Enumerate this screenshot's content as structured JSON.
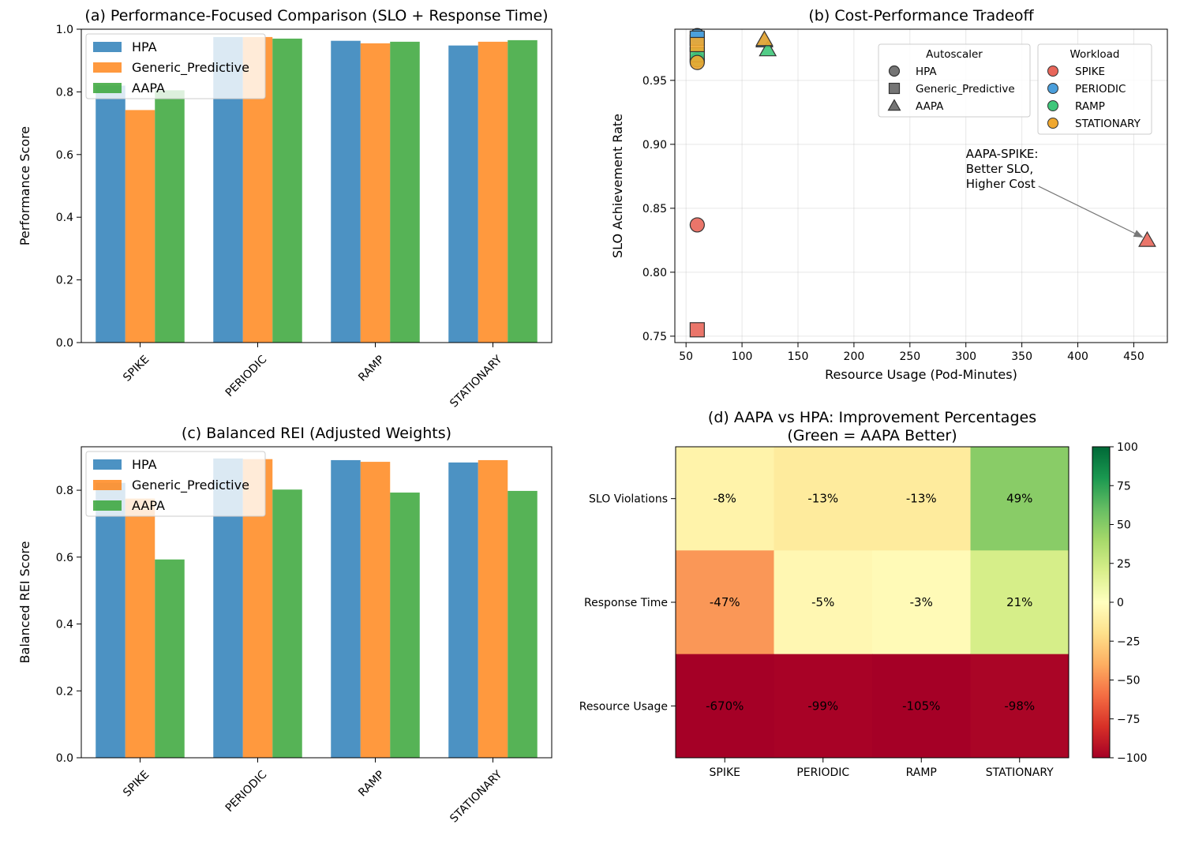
{
  "chart_data": [
    {
      "id": "a",
      "type": "bar",
      "title": "(a) Performance-Focused Comparison (SLO + Response Time)",
      "xlabel": "",
      "ylabel": "Performance Score",
      "ylim": [
        0,
        1.0
      ],
      "yticks": [
        "0.0",
        "0.2",
        "0.4",
        "0.6",
        "0.8",
        "1.0"
      ],
      "categories": [
        "SPIKE",
        "PERIODIC",
        "RAMP",
        "STATIONARY"
      ],
      "series": [
        {
          "name": "HPA",
          "color": "#1f77b4",
          "values": [
            0.82,
            0.975,
            0.963,
            0.948
          ]
        },
        {
          "name": "Generic_Predictive",
          "color": "#ff7f0e",
          "values": [
            0.742,
            0.975,
            0.955,
            0.96
          ]
        },
        {
          "name": "AAPA",
          "color": "#2ca02c",
          "values": [
            0.805,
            0.97,
            0.96,
            0.965
          ]
        }
      ],
      "legend_position": "upper-left"
    },
    {
      "id": "b",
      "type": "scatter",
      "title": "(b) Cost-Performance Tradeoff",
      "xlabel": "Resource Usage (Pod-Minutes)",
      "ylabel": "SLO Achievement Rate",
      "xlim": [
        40,
        480
      ],
      "ylim": [
        0.745,
        0.99
      ],
      "xticks": [
        "50",
        "100",
        "150",
        "200",
        "250",
        "300",
        "350",
        "400",
        "450"
      ],
      "yticks": [
        "0.75",
        "0.80",
        "0.85",
        "0.90",
        "0.95"
      ],
      "autoscaler_legend_title": "Autoscaler",
      "autoscaler_legend": [
        {
          "name": "HPA",
          "marker": "circle"
        },
        {
          "name": "Generic_Predictive",
          "marker": "square"
        },
        {
          "name": "AAPA",
          "marker": "triangle"
        }
      ],
      "workload_legend_title": "Workload",
      "workload_legend": [
        {
          "name": "SPIKE",
          "color": "#e8665a"
        },
        {
          "name": "PERIODIC",
          "color": "#4a9edb"
        },
        {
          "name": "RAMP",
          "color": "#3fc77a"
        },
        {
          "name": "STATIONARY",
          "color": "#f0a830"
        }
      ],
      "points": [
        {
          "autoscaler": "HPA",
          "workload": "SPIKE",
          "x": 60,
          "y": 0.837
        },
        {
          "autoscaler": "Generic_Predictive",
          "workload": "SPIKE",
          "x": 60,
          "y": 0.755
        },
        {
          "autoscaler": "AAPA",
          "workload": "SPIKE",
          "x": 462,
          "y": 0.825
        },
        {
          "autoscaler": "HPA",
          "workload": "PERIODIC",
          "x": 60,
          "y": 0.985
        },
        {
          "autoscaler": "Generic_Predictive",
          "workload": "PERIODIC",
          "x": 60,
          "y": 0.983
        },
        {
          "autoscaler": "AAPA",
          "workload": "PERIODIC",
          "x": 120,
          "y": 0.981
        },
        {
          "autoscaler": "HPA",
          "workload": "RAMP",
          "x": 60,
          "y": 0.966
        },
        {
          "autoscaler": "Generic_Predictive",
          "workload": "RAMP",
          "x": 60,
          "y": 0.97
        },
        {
          "autoscaler": "AAPA",
          "workload": "RAMP",
          "x": 123,
          "y": 0.974
        },
        {
          "autoscaler": "HPA",
          "workload": "STATIONARY",
          "x": 60,
          "y": 0.964
        },
        {
          "autoscaler": "Generic_Predictive",
          "workload": "STATIONARY",
          "x": 60,
          "y": 0.978
        },
        {
          "autoscaler": "AAPA",
          "workload": "STATIONARY",
          "x": 120,
          "y": 0.982
        }
      ],
      "annotation": {
        "lines": [
          "AAPA-SPIKE:",
          "Better SLO,",
          "Higher Cost"
        ],
        "text_x": 300,
        "text_y": 0.866,
        "arrow_to_x": 462,
        "arrow_to_y": 0.825
      }
    },
    {
      "id": "c",
      "type": "bar",
      "title": "(c) Balanced REI (Adjusted Weights)",
      "xlabel": "",
      "ylabel": "Balanced REI Score",
      "ylim": [
        0,
        0.93
      ],
      "yticks": [
        "0.0",
        "0.2",
        "0.4",
        "0.6",
        "0.8"
      ],
      "ytick_values": [
        0,
        0.2,
        0.4,
        0.6,
        0.8
      ],
      "categories": [
        "SPIKE",
        "PERIODIC",
        "RAMP",
        "STATIONARY"
      ],
      "series": [
        {
          "name": "HPA",
          "color": "#1f77b4",
          "values": [
            0.822,
            0.895,
            0.89,
            0.883
          ]
        },
        {
          "name": "Generic_Predictive",
          "color": "#ff7f0e",
          "values": [
            0.775,
            0.893,
            0.885,
            0.89
          ]
        },
        {
          "name": "AAPA",
          "color": "#2ca02c",
          "values": [
            0.593,
            0.802,
            0.793,
            0.798
          ]
        }
      ],
      "legend_position": "upper-left"
    },
    {
      "id": "d",
      "type": "heatmap",
      "title": "(d) AAPA vs HPA: Improvement Percentages",
      "subtitle": "(Green = AAPA Better)",
      "rows": [
        "SLO Violations",
        "Response Time",
        "Resource Usage"
      ],
      "columns": [
        "SPIKE",
        "PERIODIC",
        "RAMP",
        "STATIONARY"
      ],
      "values": [
        [
          -8,
          -13,
          -13,
          49
        ],
        [
          -47,
          -5,
          -3,
          21
        ],
        [
          -670,
          -99,
          -105,
          -98
        ]
      ],
      "labels": [
        [
          "-8%",
          "-13%",
          "-13%",
          "49%"
        ],
        [
          "-47%",
          "-5%",
          "-3%",
          "21%"
        ],
        [
          "-670%",
          "-99%",
          "-105%",
          "-98%"
        ]
      ],
      "colorbar_range": [
        -100,
        100
      ],
      "colorbar_ticks": [
        "100",
        "75",
        "50",
        "25",
        "0",
        "−25",
        "−50",
        "−75",
        "−100"
      ]
    }
  ]
}
